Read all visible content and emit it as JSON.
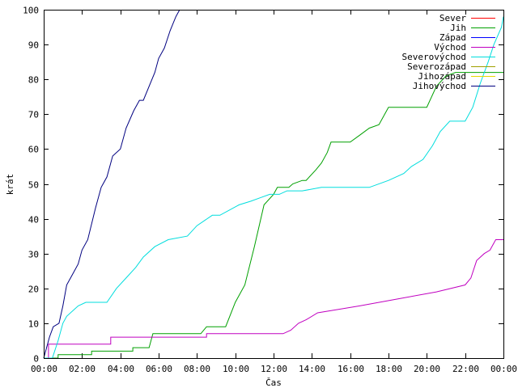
{
  "chart_data": {
    "type": "line",
    "xlabel": "Čas",
    "ylabel": "krát",
    "xlim": [
      0,
      24
    ],
    "ylim": [
      0,
      100
    ],
    "grid": false,
    "legend_position": "top-right",
    "x_ticks": [
      {
        "value": 0,
        "label": "00:00"
      },
      {
        "value": 2,
        "label": "02:00"
      },
      {
        "value": 4,
        "label": "04:00"
      },
      {
        "value": 6,
        "label": "06:00"
      },
      {
        "value": 8,
        "label": "08:00"
      },
      {
        "value": 10,
        "label": "10:00"
      },
      {
        "value": 12,
        "label": "12:00"
      },
      {
        "value": 14,
        "label": "14:00"
      },
      {
        "value": 16,
        "label": "16:00"
      },
      {
        "value": 18,
        "label": "18:00"
      },
      {
        "value": 20,
        "label": "20:00"
      },
      {
        "value": 22,
        "label": "22:00"
      },
      {
        "value": 24,
        "label": "00:00"
      }
    ],
    "y_ticks": [
      0,
      10,
      20,
      30,
      40,
      50,
      60,
      70,
      80,
      90,
      100
    ],
    "series": [
      {
        "name": "Sever",
        "color": "#ff0000",
        "x": [],
        "y": []
      },
      {
        "name": "Jih",
        "color": "#00a000",
        "x": [
          0,
          0.75,
          0.75,
          2.5,
          2.5,
          4.65,
          4.65,
          5.5,
          5.7,
          5.7,
          8.2,
          8.5,
          9.5,
          10,
          10.5,
          11,
          11.5,
          12,
          12.2,
          12.8,
          13,
          13.5,
          13.7,
          14.2,
          14.5,
          14.8,
          15,
          15.5,
          16,
          16.5,
          17,
          17.5,
          18,
          20,
          20.5,
          21,
          21.5,
          22,
          22.5,
          23,
          23.5,
          24
        ],
        "y": [
          0,
          0,
          1,
          1,
          2,
          2,
          3,
          3,
          7,
          7,
          7,
          9,
          9,
          16,
          21,
          32,
          44,
          47,
          49,
          49,
          50,
          51,
          51,
          54,
          56,
          59,
          62,
          62,
          62,
          64,
          66,
          67,
          72,
          72,
          78,
          81,
          82,
          82,
          82,
          82,
          82,
          82
        ]
      },
      {
        "name": "Západ",
        "color": "#0000ff",
        "x": [],
        "y": []
      },
      {
        "name": "Východ",
        "color": "#c000c0",
        "x": [
          0,
          0.25,
          0.25,
          3.5,
          3.5,
          8.5,
          8.5,
          12.5,
          12.9,
          13.3,
          13.7,
          14.3,
          16.5,
          18.5,
          18.5,
          20.5,
          20.5,
          22,
          22.3,
          22.6,
          23,
          23.3,
          23.6,
          24
        ],
        "y": [
          0,
          0,
          4,
          4,
          6,
          6,
          7,
          7,
          8,
          10,
          11,
          13,
          15,
          17,
          17,
          19,
          19,
          21,
          23,
          28,
          30,
          31,
          34,
          34
        ]
      },
      {
        "name": "Severovýchod",
        "color": "#00dddd",
        "x": [
          0,
          0.45,
          0.75,
          1,
          1.2,
          1.8,
          2.2,
          3.3,
          3.8,
          4.3,
          4.8,
          5.2,
          5.8,
          6.5,
          7.5,
          8,
          8.8,
          9.2,
          10.2,
          10.8,
          11.3,
          11.8,
          12.3,
          12.7,
          13.5,
          14.5,
          16,
          17,
          18,
          18.8,
          19.2,
          19.8,
          20.3,
          20.7,
          21.2,
          21.8,
          22,
          22.4,
          22.8,
          23.2,
          23.5,
          23.9,
          24
        ],
        "y": [
          0,
          0,
          5,
          10,
          12,
          15,
          16,
          16,
          20,
          23,
          26,
          29,
          32,
          34,
          35,
          38,
          41,
          41,
          44,
          45,
          46,
          47,
          47,
          48,
          48,
          49,
          49,
          49,
          51,
          53,
          55,
          57,
          61,
          65,
          68,
          68,
          68,
          72,
          79,
          85,
          90,
          95,
          98
        ]
      },
      {
        "name": "Severozápad",
        "color": "#a0a000",
        "x": [],
        "y": []
      },
      {
        "name": "Jihozápad",
        "color": "#e6d800",
        "x": [],
        "y": []
      },
      {
        "name": "Jihovýchod",
        "color": "#000080",
        "x": [
          0,
          0.1,
          0.3,
          0.5,
          0.8,
          1,
          1.2,
          1.5,
          1.8,
          2,
          2.3,
          2.7,
          3,
          3.3,
          3.6,
          4,
          4.3,
          4.7,
          5,
          5.2,
          5.5,
          5.8,
          6,
          6.3,
          6.6,
          6.9,
          7.1
        ],
        "y": [
          0,
          2,
          6,
          9,
          10,
          15,
          21,
          24,
          27,
          31,
          34,
          43,
          49,
          52,
          58,
          60,
          66,
          71,
          74,
          74,
          78,
          82,
          86,
          89,
          94,
          98,
          100
        ]
      }
    ]
  }
}
